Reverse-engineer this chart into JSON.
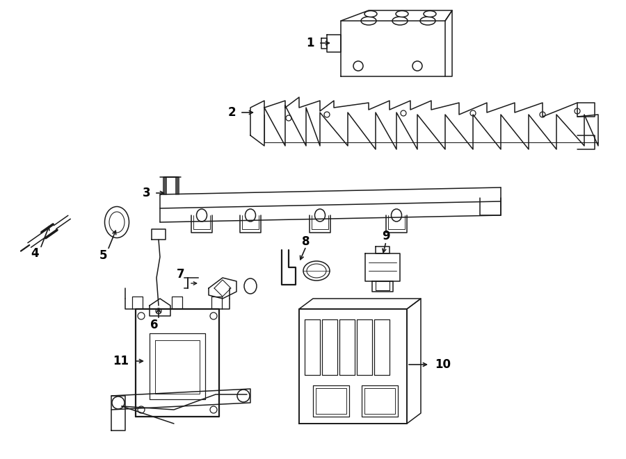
{
  "bg_color": "#ffffff",
  "line_color": "#1a1a1a",
  "text_color": "#000000",
  "lw": 1.1,
  "figsize": [
    9.0,
    6.61
  ],
  "dpi": 100
}
